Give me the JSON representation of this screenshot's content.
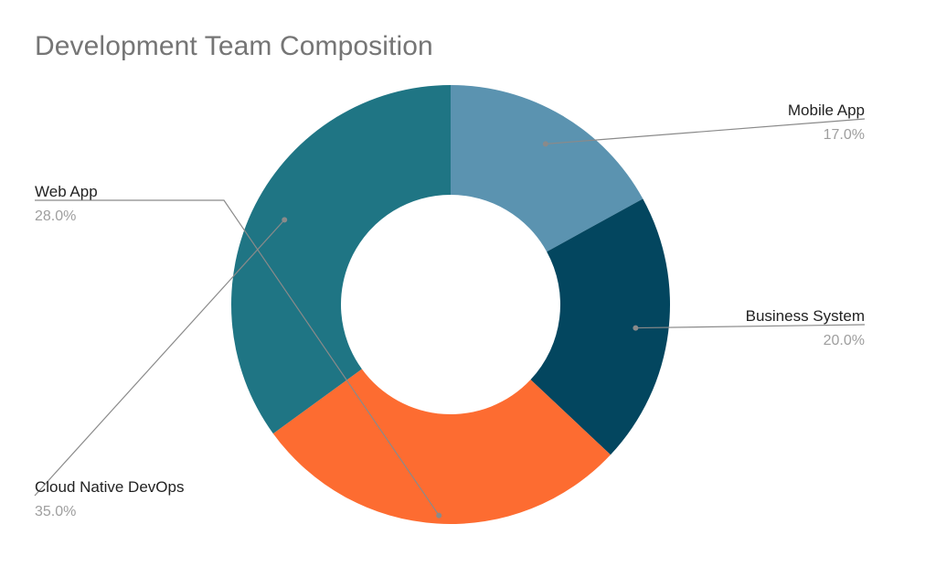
{
  "chart_data": {
    "type": "pie",
    "title": "Development Team Composition",
    "donut": true,
    "slices": [
      {
        "label": "Mobile App",
        "value": 17.0,
        "value_label": "17.0%",
        "color": "#5b93b0"
      },
      {
        "label": "Business System",
        "value": 20.0,
        "value_label": "20.0%",
        "color": "#03465f"
      },
      {
        "label": "Web App",
        "value": 28.0,
        "value_label": "28.0%",
        "color": "#fd6c31"
      },
      {
        "label": "Cloud Native DevOps",
        "value": 35.0,
        "value_label": "35.0%",
        "color": "#1f7584"
      }
    ],
    "legend": "none",
    "label_position": "outside-with-leader-lines"
  }
}
